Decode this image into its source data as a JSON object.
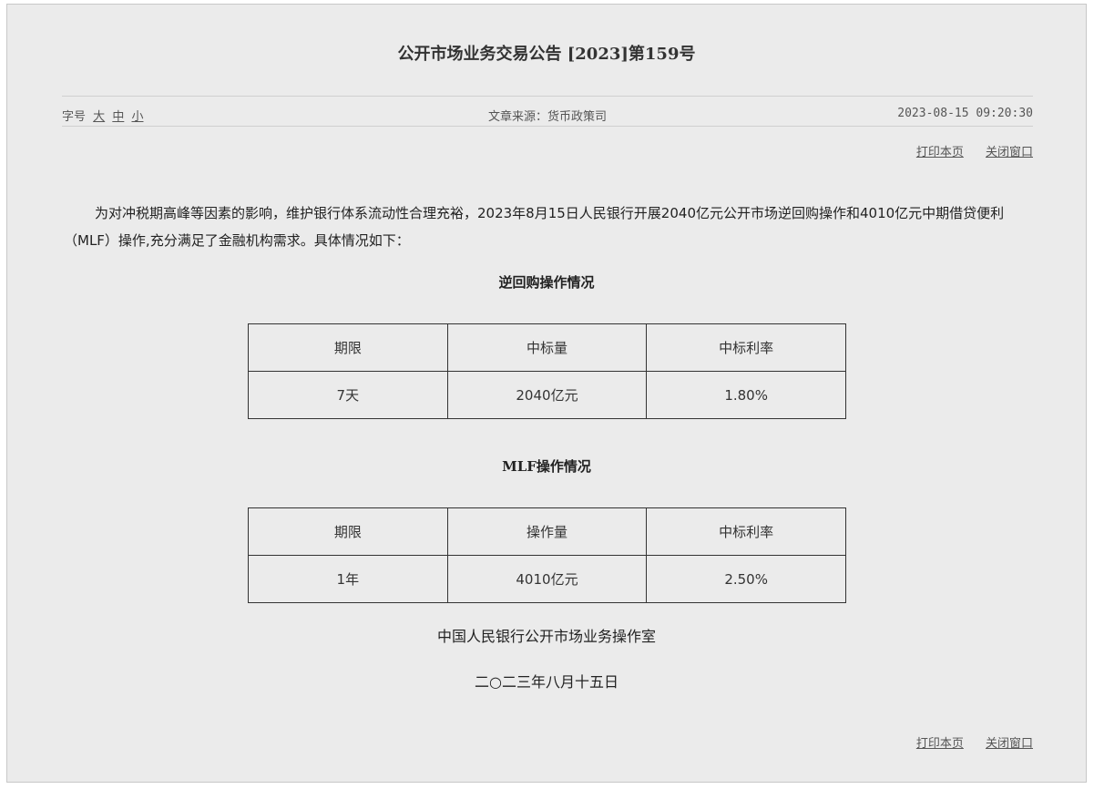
{
  "title": "公开市场业务交易公告 [2023]第159号",
  "meta": {
    "font_size_label": "字号",
    "sizes": [
      "大",
      "中",
      "小"
    ],
    "source": "文章来源：货币政策司",
    "time": "2023-08-15 09:20:30"
  },
  "links": {
    "print": "打印本页",
    "close": "关闭窗口"
  },
  "paragraph": "为对冲税期高峰等因素的影响，维护银行体系流动性合理充裕，2023年8月15日人民银行开展2040亿元公开市场逆回购操作和4010亿元中期借贷便利（MLF）操作,充分满足了金融机构需求。具体情况如下：",
  "repo": {
    "heading": "逆回购操作情况",
    "headers": [
      "期限",
      "中标量",
      "中标利率"
    ],
    "row": [
      "7天",
      "2040亿元",
      "1.80%"
    ]
  },
  "mlf": {
    "heading": "MLF操作情况",
    "headers": [
      "期限",
      "操作量",
      "中标利率"
    ],
    "row": [
      "1年",
      "4010亿元",
      "2.50%"
    ]
  },
  "signature": {
    "org": "中国人民银行公开市场业务操作室",
    "date": "二○二三年八月十五日"
  }
}
